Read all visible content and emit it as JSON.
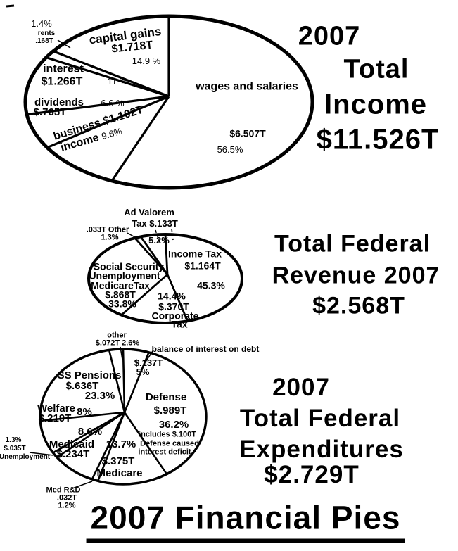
{
  "colors": {
    "ink": "#000000",
    "paper": "#ffffff"
  },
  "footer_title": "2007 Financial Pies",
  "chart_data": [
    {
      "type": "pie",
      "title_lines": [
        "2007",
        "Total",
        "Income"
      ],
      "total": "$11.526T",
      "slices": [
        {
          "name": "wages and salaries",
          "amount": "$6.507T",
          "pct": 56.5,
          "pct_label": "56.5%"
        },
        {
          "name": "business income",
          "name_lines": [
            "business",
            "income"
          ],
          "amount": "$1.102T",
          "pct": 9.6,
          "pct_label": "9.6%"
        },
        {
          "name": "dividends",
          "amount": "$.765T",
          "pct": 6.6,
          "pct_label": "6.6 %"
        },
        {
          "name": "interest",
          "amount": "$1.266T",
          "pct": 11,
          "pct_label": "11 %"
        },
        {
          "name": "rents",
          "amount": ".168T",
          "pct": 1.4,
          "pct_label": "1.4%"
        },
        {
          "name": "capital gains",
          "amount": "$1.718T",
          "pct": 14.9,
          "pct_label": "14.9 %"
        }
      ]
    },
    {
      "type": "pie",
      "title_lines": [
        "Total Federal",
        "Revenue 2007"
      ],
      "total": "$2.568T",
      "slices": [
        {
          "name": "Income Tax",
          "amount": "$1.164T",
          "pct": 45.3,
          "pct_label": "45.3%"
        },
        {
          "name": "Corporate Tax",
          "name_lines": [
            "Corporate",
            "Tax"
          ],
          "amount": "$.370T",
          "pct": 14.4,
          "pct_label": "14.4%"
        },
        {
          "name": "Social Security Unemployment Medicare Tax",
          "name_lines": [
            "Social Security",
            "Unemployment",
            "MedicareTax"
          ],
          "amount": "$.868T",
          "pct": 33.8,
          "pct_label": "33.8%"
        },
        {
          "name": "Other",
          "amount": ".033T",
          "pct": 1.3,
          "pct_label": "1.3%"
        },
        {
          "name": "Ad Valorem Tax",
          "name_lines": [
            "Ad Valorem",
            "Tax"
          ],
          "amount": "$.133T",
          "pct": 5.2,
          "pct_label": "5.2%"
        }
      ]
    },
    {
      "type": "pie",
      "title_lines": [
        "2007",
        "Total Federal",
        "Expenditures"
      ],
      "total": "$2.729T",
      "slices": [
        {
          "name": "balance of interest on debt",
          "amount": "$.137T",
          "pct": 5,
          "pct_label": "5%"
        },
        {
          "name": "Defense",
          "amount": "$.989T",
          "pct": 36.2,
          "pct_label": "36.2%",
          "note_lines": [
            "includes $.100T",
            "Defense caused",
            "interest deficit"
          ]
        },
        {
          "name": "Medicare",
          "amount": "$.375T",
          "pct": 13.7,
          "pct_label": "13.7%"
        },
        {
          "name": "Med R&D",
          "amount": ".032T",
          "pct": 1.2,
          "pct_label": "1.2%"
        },
        {
          "name": "Medicaid",
          "amount": "$.234T",
          "pct": 8.6,
          "pct_label": "8.6%"
        },
        {
          "name": "Unemployment",
          "amount": "$.035T",
          "pct": 1.3,
          "pct_label": "1.3%"
        },
        {
          "name": "Welfare",
          "amount": "$.219T",
          "pct": 8,
          "pct_label": "8%"
        },
        {
          "name": "SS Pensions",
          "amount": "$.636T",
          "pct": 23.3,
          "pct_label": "23.3%"
        },
        {
          "name": "other",
          "amount": "$.072T",
          "pct": 2.6,
          "pct_label": "2.6%"
        }
      ]
    }
  ]
}
